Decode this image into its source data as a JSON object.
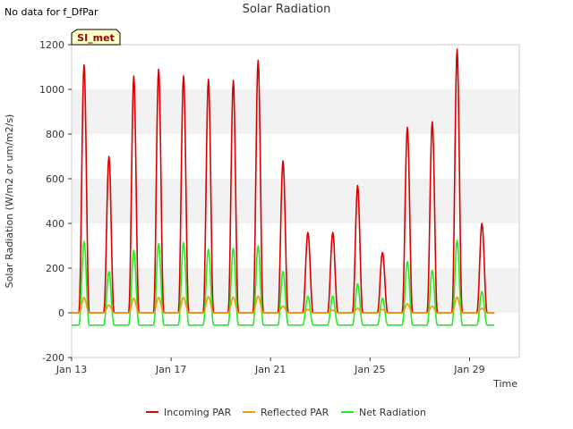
{
  "note": "No data for f_DfPar",
  "site_badge": "SI_met",
  "chart_data": {
    "type": "line",
    "title": "Solar Radiation",
    "xlabel": "Time",
    "ylabel": "Solar Radiation (W/m2 or um/m2/s)",
    "ylim": [
      -200,
      1200
    ],
    "yticks": [
      -200,
      0,
      200,
      400,
      600,
      800,
      1000,
      1200
    ],
    "xlim": [
      13.0,
      31.0
    ],
    "xtick_positions": [
      13,
      17,
      21,
      25,
      29
    ],
    "xtick_labels": [
      "Jan 13",
      "Jan 17",
      "Jan 21",
      "Jan 25",
      "Jan 29"
    ],
    "grid": "horizontal bands",
    "legend_position": "bottom-center",
    "series": [
      {
        "name": "Incoming PAR",
        "color": "#dd0000",
        "daily_peaks": [
          1110,
          700,
          1060,
          1090,
          1060,
          1045,
          1040,
          1130,
          680,
          360,
          360,
          570,
          270,
          830,
          855,
          1180,
          400
        ]
      },
      {
        "name": "Reflected PAR",
        "color": "#e8a000",
        "daily_peaks": [
          68,
          35,
          65,
          68,
          68,
          72,
          70,
          75,
          30,
          15,
          12,
          20,
          15,
          40,
          30,
          70,
          20
        ]
      },
      {
        "name": "Net Radiation",
        "color": "#22ee22",
        "daily_peaks": [
          320,
          185,
          280,
          310,
          315,
          285,
          290,
          300,
          185,
          75,
          75,
          130,
          65,
          230,
          190,
          325,
          95
        ],
        "night_value": -55
      }
    ]
  }
}
